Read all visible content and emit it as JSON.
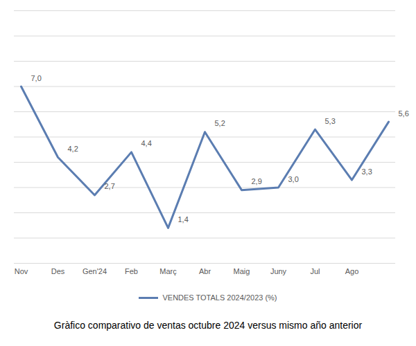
{
  "chart_data": {
    "type": "line",
    "title": "Gràfico comparativo de ventas octubre 2024 versus mismo año anterior",
    "categories": [
      "Nov",
      "Des",
      "Gen'24",
      "Feb",
      "Març",
      "Abr",
      "Maig",
      "Juny",
      "Jul",
      "Ago",
      null
    ],
    "series": [
      {
        "name": "VENDES TOTALS 2024/2023 (%)",
        "color": "#5b7db1",
        "values": [
          7.0,
          4.2,
          2.7,
          4.4,
          1.4,
          5.2,
          2.9,
          3.0,
          5.3,
          3.3,
          5.6
        ],
        "value_labels": [
          "7,0",
          "4,2",
          "2,7",
          "4,4",
          "1,4",
          "5,2",
          "2,9",
          "3,0",
          "5,3",
          "3,3",
          "5,6"
        ]
      }
    ],
    "ylim": [
      0,
      10
    ],
    "yticks": [
      0,
      1,
      2,
      3,
      4,
      5,
      6,
      7,
      8,
      9,
      10
    ],
    "grid": true,
    "tick_labels": "x",
    "data_labels": true,
    "legend": "bottom"
  }
}
